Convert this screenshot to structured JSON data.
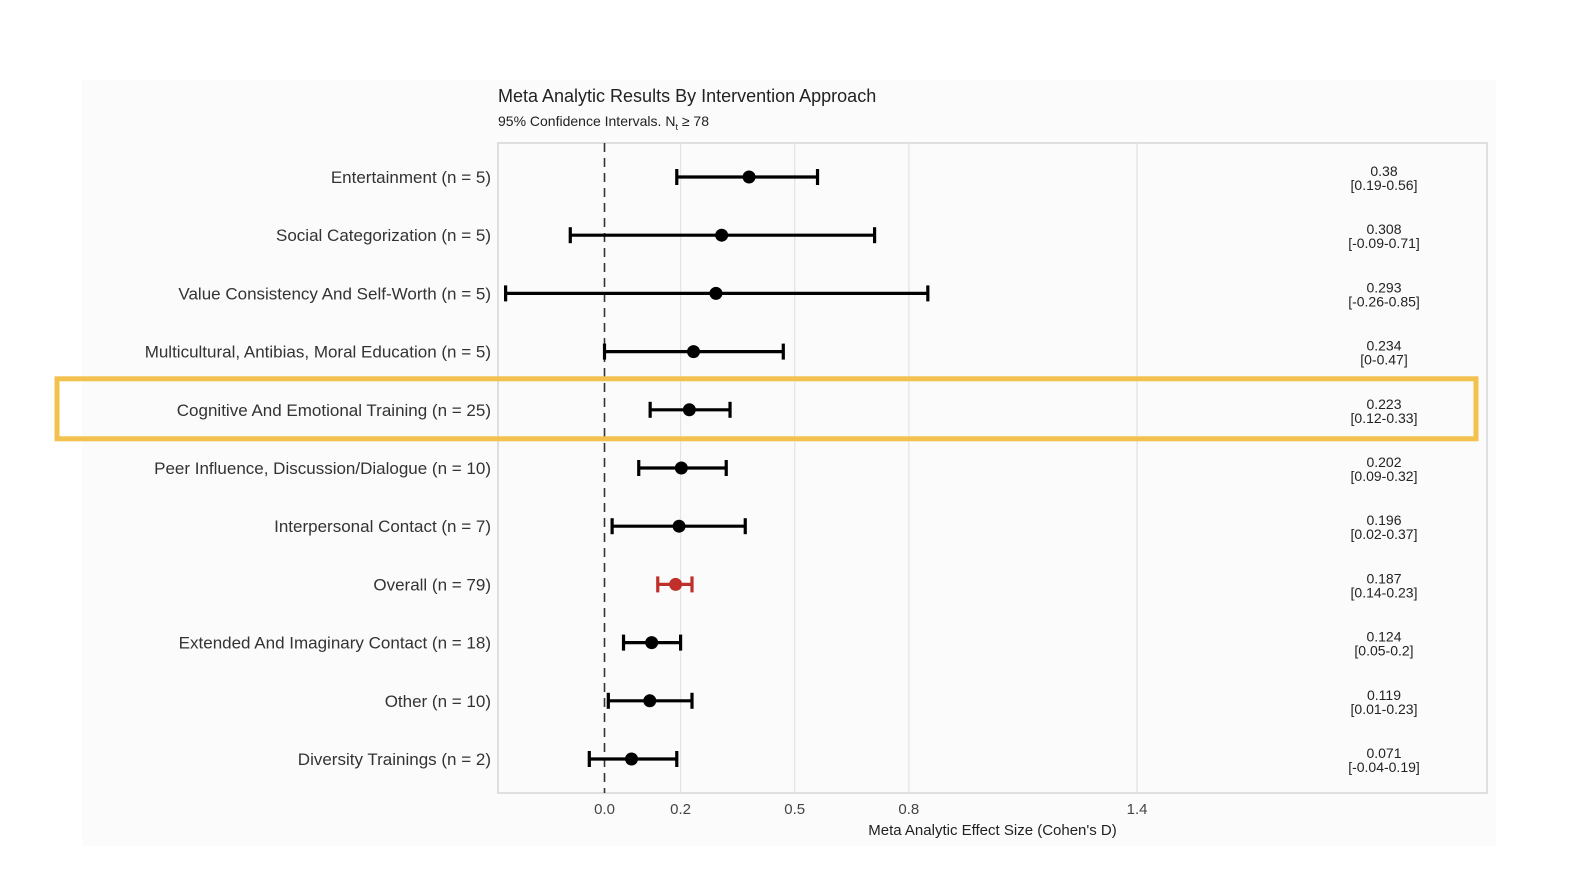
{
  "chart_data": {
    "type": "forest",
    "title": "Meta Analytic Results By Intervention Approach",
    "subtitle": "95% Confidence Intervals. N",
    "subtitle_subscript": "t",
    "subtitle_tail": " ≥ 78",
    "xlabel": "Meta Analytic Effect Size (Cohen's D)",
    "xlim": [
      -0.28,
      2.32
    ],
    "xticks": [
      0.0,
      0.2,
      0.5,
      0.8,
      1.4
    ],
    "xtick_labels": [
      "0.0",
      "0.2",
      "0.5",
      "0.8",
      "1.4"
    ],
    "reference_line": 0.0,
    "grid": true,
    "highlight_row": "Cognitive And Emotional Training (n = 25)",
    "highlight_color": "#f2c14e",
    "point_color": "#000000",
    "overall_color": "#c0302b",
    "rows": [
      {
        "label": "Entertainment (n = 5)",
        "estimate": 0.38,
        "lower": 0.19,
        "upper": 0.56,
        "value_text": "0.38",
        "ci_text": "[0.19-0.56]",
        "overall": false
      },
      {
        "label": "Social Categorization (n = 5)",
        "estimate": 0.308,
        "lower": -0.09,
        "upper": 0.71,
        "value_text": "0.308",
        "ci_text": "[-0.09-0.71]",
        "overall": false
      },
      {
        "label": "Value Consistency And Self-Worth (n = 5)",
        "estimate": 0.293,
        "lower": -0.26,
        "upper": 0.85,
        "value_text": "0.293",
        "ci_text": "[-0.26-0.85]",
        "overall": false
      },
      {
        "label": "Multicultural, Antibias, Moral Education (n = 5)",
        "estimate": 0.234,
        "lower": 0.0,
        "upper": 0.47,
        "value_text": "0.234",
        "ci_text": "[0-0.47]",
        "overall": false
      },
      {
        "label": "Cognitive And Emotional Training (n = 25)",
        "estimate": 0.223,
        "lower": 0.12,
        "upper": 0.33,
        "value_text": "0.223",
        "ci_text": "[0.12-0.33]",
        "overall": false
      },
      {
        "label": "Peer Influence, Discussion/Dialogue (n = 10)",
        "estimate": 0.202,
        "lower": 0.09,
        "upper": 0.32,
        "value_text": "0.202",
        "ci_text": "[0.09-0.32]",
        "overall": false
      },
      {
        "label": "Interpersonal Contact (n = 7)",
        "estimate": 0.196,
        "lower": 0.02,
        "upper": 0.37,
        "value_text": "0.196",
        "ci_text": "[0.02-0.37]",
        "overall": false
      },
      {
        "label": "Overall (n = 79)",
        "estimate": 0.187,
        "lower": 0.14,
        "upper": 0.23,
        "value_text": "0.187",
        "ci_text": "[0.14-0.23]",
        "overall": true
      },
      {
        "label": "Extended And Imaginary Contact (n = 18)",
        "estimate": 0.124,
        "lower": 0.05,
        "upper": 0.2,
        "value_text": "0.124",
        "ci_text": "[0.05-0.2]",
        "overall": false
      },
      {
        "label": "Other (n = 10)",
        "estimate": 0.119,
        "lower": 0.01,
        "upper": 0.23,
        "value_text": "0.119",
        "ci_text": "[0.01-0.23]",
        "overall": false
      },
      {
        "label": "Diversity Trainings (n = 2)",
        "estimate": 0.071,
        "lower": -0.04,
        "upper": 0.19,
        "value_text": "0.071",
        "ci_text": "[-0.04-0.19]",
        "overall": false
      }
    ]
  }
}
